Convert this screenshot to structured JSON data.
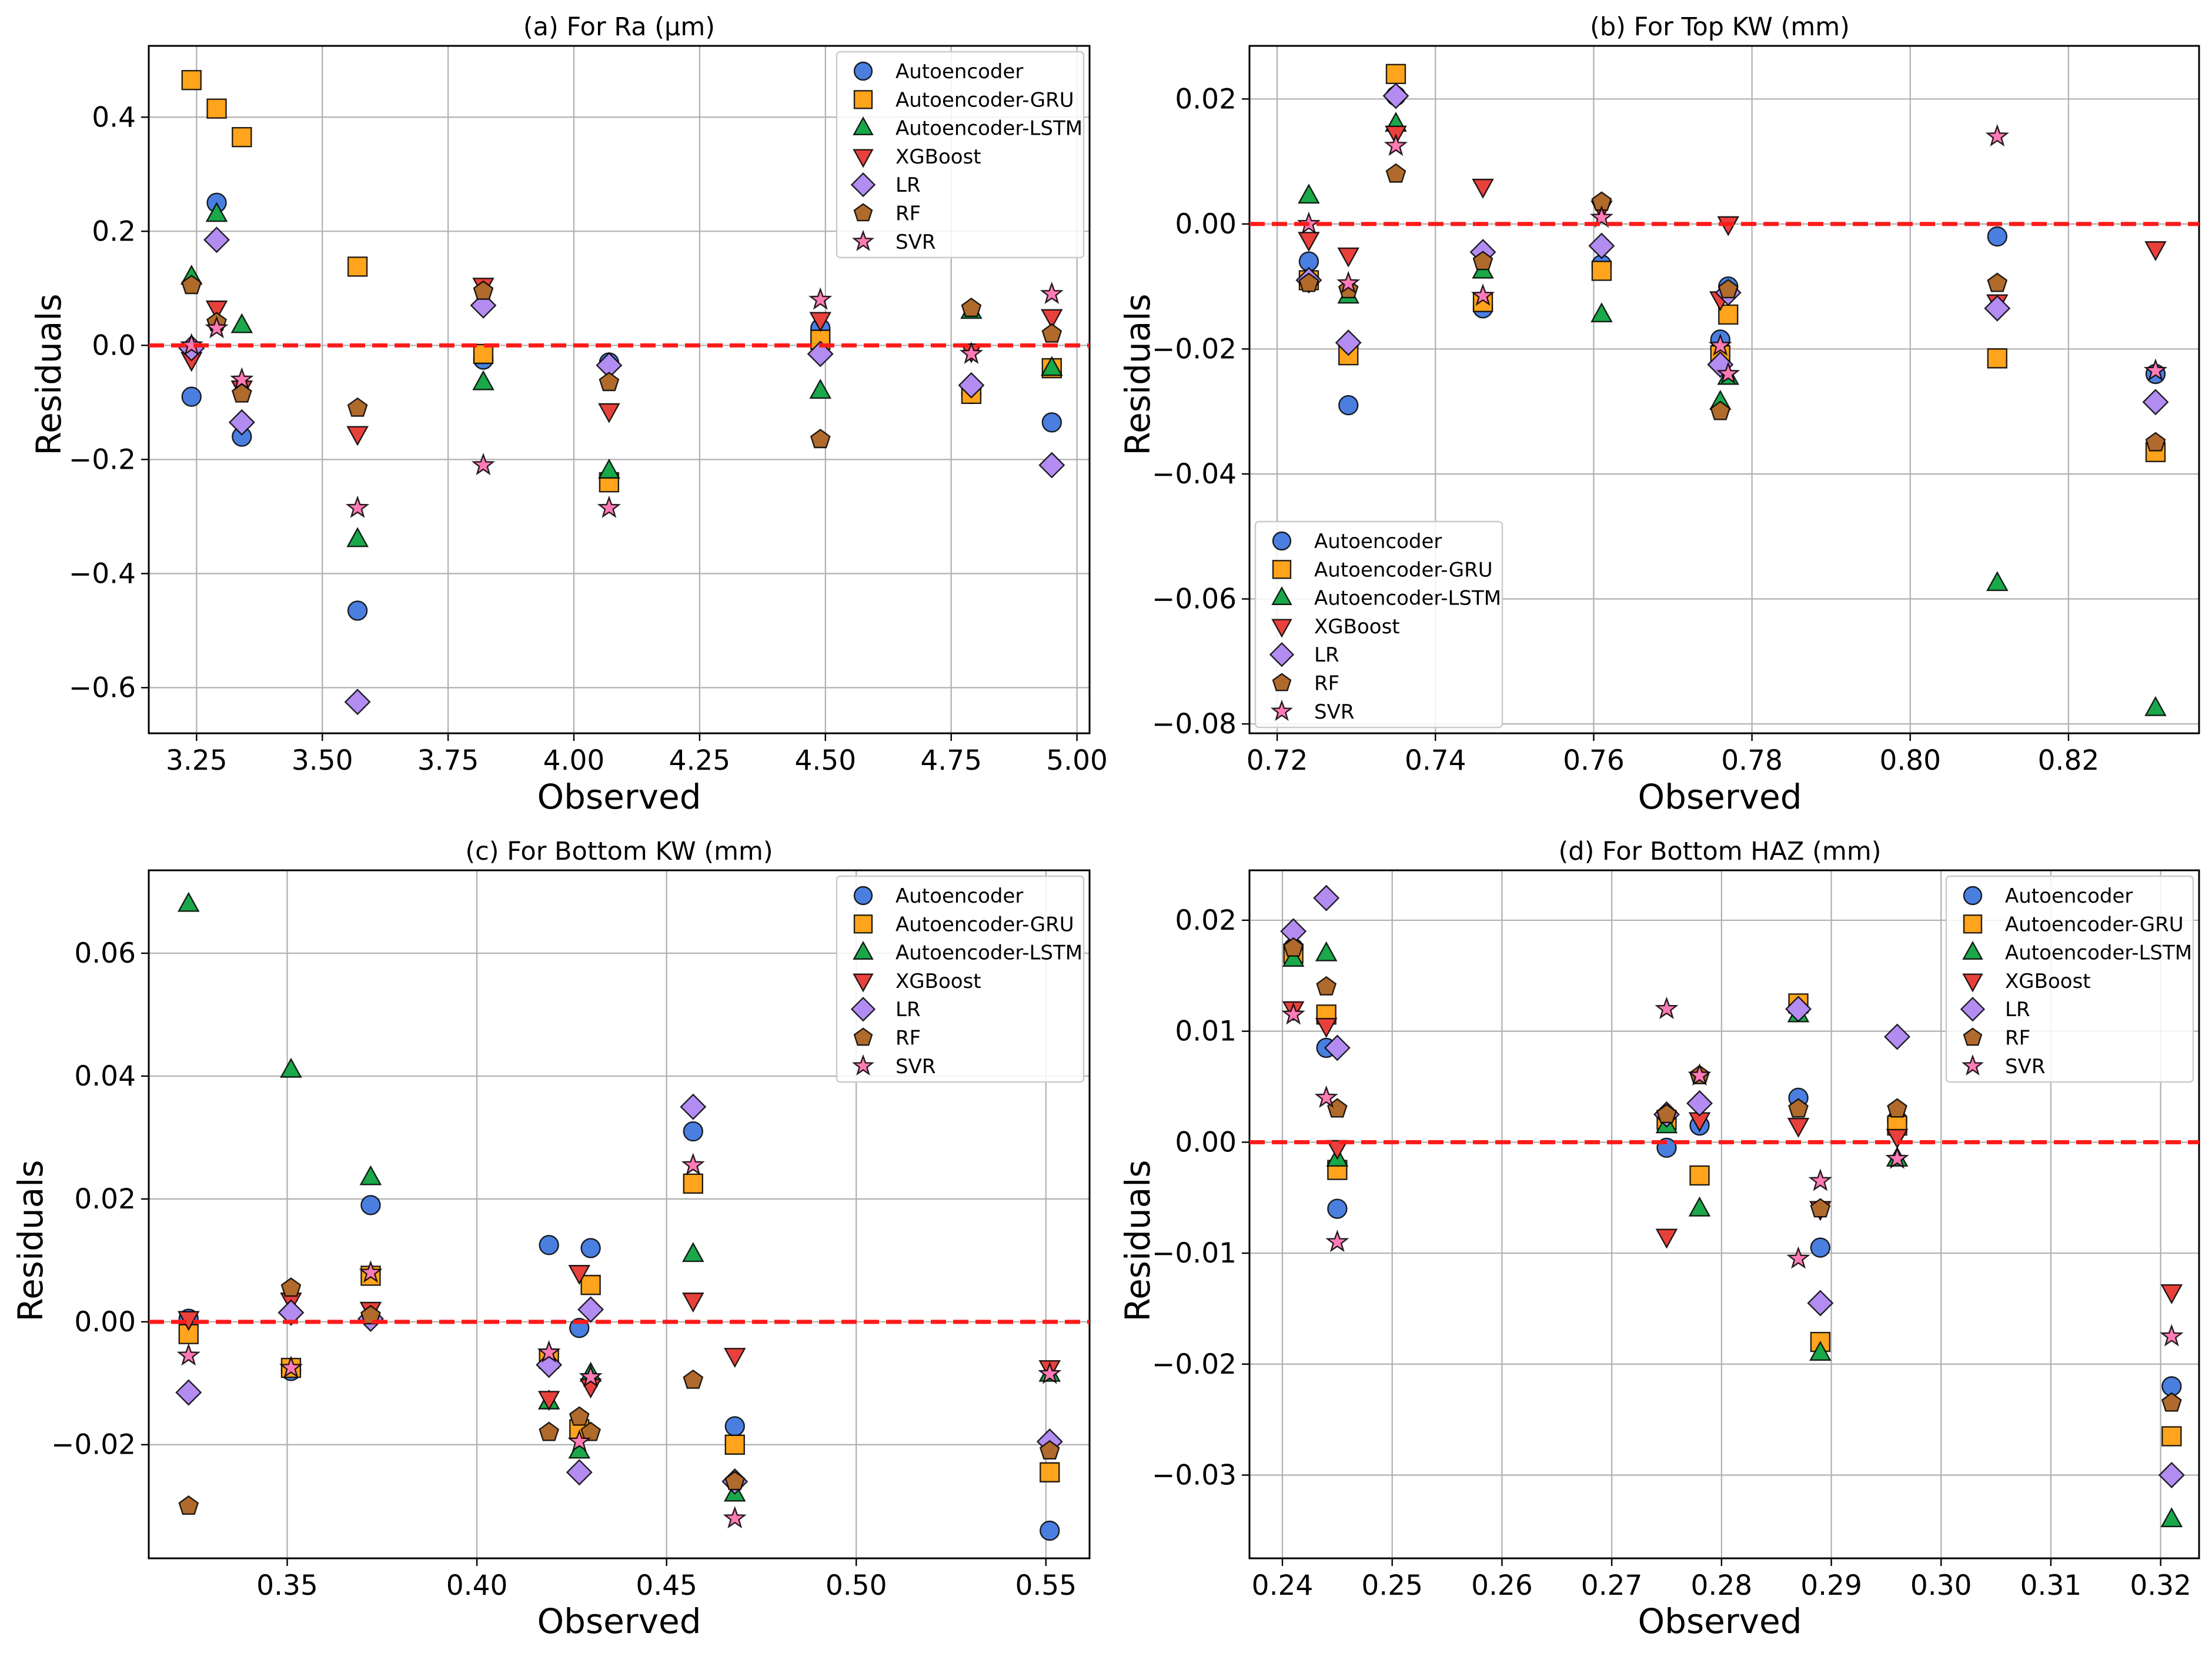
{
  "figure": {
    "series_styles": [
      {
        "name": "Autoencoder",
        "marker": "circle",
        "color": "#4a7fe0"
      },
      {
        "name": "Autoencoder-GRU",
        "marker": "square",
        "color": "#ffa41c"
      },
      {
        "name": "Autoencoder-LSTM",
        "marker": "triangle-up",
        "color": "#1aa84a"
      },
      {
        "name": "XGBoost",
        "marker": "triangle-down",
        "color": "#e8413c"
      },
      {
        "name": "LR",
        "marker": "diamond",
        "color": "#b28cf0"
      },
      {
        "name": "RF",
        "marker": "pentagon",
        "color": "#b06a2c"
      },
      {
        "name": "SVR",
        "marker": "star",
        "color": "#ff7bb6"
      }
    ],
    "reference_line_color": "#ff1a1a"
  },
  "chart_data": [
    {
      "type": "scatter",
      "title": "(a) For Ra (μm)",
      "xlabel": "Observed",
      "ylabel": "Residuals",
      "xlim": [
        3.155,
        5.025
      ],
      "ylim": [
        -0.68,
        0.525
      ],
      "xticks": [
        3.25,
        3.5,
        3.75,
        4.0,
        4.25,
        4.5,
        4.75,
        5.0
      ],
      "xtick_labels": [
        "3.25",
        "3.50",
        "3.75",
        "4.00",
        "4.25",
        "4.50",
        "4.75",
        "5.00"
      ],
      "yticks": [
        -0.6,
        -0.4,
        -0.2,
        0.0,
        0.2,
        0.4
      ],
      "ytick_labels": [
        "−0.6",
        "−0.4",
        "−0.2",
        "0.0",
        "0.2",
        "0.4"
      ],
      "grid": true,
      "legend_position": "top-right",
      "reference_line": 0,
      "x": [
        3.24,
        3.29,
        3.34,
        3.57,
        3.82,
        4.07,
        4.49,
        4.79,
        4.95
      ],
      "series": [
        {
          "name": "Autoencoder",
          "values": [
            -0.09,
            0.25,
            -0.16,
            -0.465,
            -0.025,
            -0.03,
            0.03,
            -0.085,
            -0.135
          ]
        },
        {
          "name": "Autoencoder-GRU",
          "values": [
            0.465,
            0.415,
            0.365,
            0.138,
            -0.015,
            -0.24,
            0.01,
            -0.085,
            -0.04
          ]
        },
        {
          "name": "Autoencoder-LSTM",
          "values": [
            0.12,
            0.23,
            0.035,
            -0.34,
            -0.065,
            -0.22,
            -0.08,
            0.06,
            -0.04
          ]
        },
        {
          "name": "XGBoost",
          "values": [
            -0.025,
            0.065,
            -0.075,
            -0.155,
            0.105,
            -0.115,
            0.045,
            -0.01,
            0.05
          ]
        },
        {
          "name": "LR",
          "values": [
            -0.005,
            0.185,
            -0.135,
            -0.625,
            0.07,
            -0.035,
            -0.015,
            -0.07,
            -0.21
          ]
        },
        {
          "name": "RF",
          "values": [
            0.105,
            0.04,
            -0.085,
            -0.11,
            0.095,
            -0.065,
            -0.165,
            0.065,
            0.02
          ]
        },
        {
          "name": "SVR",
          "values": [
            0.0,
            0.03,
            -0.06,
            -0.285,
            -0.21,
            -0.285,
            0.08,
            -0.015,
            0.09
          ]
        }
      ]
    },
    {
      "type": "scatter",
      "title": "(b) For Top KW (mm)",
      "xlabel": "Observed",
      "ylabel": "Residuals",
      "xlim": [
        0.7165,
        0.8365
      ],
      "ylim": [
        -0.0815,
        0.0285
      ],
      "xticks": [
        0.72,
        0.74,
        0.76,
        0.78,
        0.8,
        0.82
      ],
      "xtick_labels": [
        "0.72",
        "0.74",
        "0.76",
        "0.78",
        "0.80",
        "0.82"
      ],
      "yticks": [
        -0.08,
        -0.06,
        -0.04,
        -0.02,
        0.0,
        0.02
      ],
      "ytick_labels": [
        "−0.08",
        "−0.06",
        "−0.04",
        "−0.02",
        "0.00",
        "0.02"
      ],
      "grid": true,
      "legend_position": "bottom-left",
      "reference_line": 0,
      "x": [
        0.724,
        0.729,
        0.735,
        0.746,
        0.761,
        0.776,
        0.777,
        0.811,
        0.831
      ],
      "series": [
        {
          "name": "Autoencoder",
          "values": [
            -0.006,
            -0.029,
            0.0205,
            -0.0135,
            -0.0065,
            -0.0185,
            -0.01,
            -0.002,
            -0.024
          ]
        },
        {
          "name": "Autoencoder-GRU",
          "values": [
            -0.009,
            -0.021,
            0.024,
            -0.0125,
            -0.0075,
            -0.021,
            -0.0145,
            -0.0215,
            -0.0365
          ]
        },
        {
          "name": "Autoencoder-LSTM",
          "values": [
            0.0045,
            -0.0115,
            0.016,
            -0.0075,
            -0.0145,
            -0.0285,
            -0.0245,
            -0.0575,
            -0.0775
          ]
        },
        {
          "name": "XGBoost",
          "values": [
            -0.0025,
            -0.005,
            0.0145,
            0.006,
            0.0025,
            -0.012,
            0.0,
            -0.0125,
            -0.004
          ]
        },
        {
          "name": "LR",
          "values": [
            -0.009,
            -0.019,
            0.0205,
            -0.0045,
            -0.0035,
            -0.0225,
            -0.011,
            -0.0135,
            -0.0285
          ]
        },
        {
          "name": "RF",
          "values": [
            -0.0095,
            -0.0105,
            0.008,
            -0.006,
            0.0035,
            -0.03,
            -0.0105,
            -0.0095,
            -0.035
          ]
        },
        {
          "name": "SVR",
          "values": [
            0.0,
            -0.0095,
            0.0125,
            -0.0115,
            0.001,
            -0.0195,
            -0.024,
            0.014,
            -0.0235
          ]
        }
      ]
    },
    {
      "type": "scatter",
      "title": "(c) For Bottom KW (mm)",
      "xlabel": "Observed",
      "ylabel": "Residuals",
      "xlim": [
        0.3135,
        0.5615
      ],
      "ylim": [
        -0.0385,
        0.0735
      ],
      "xticks": [
        0.35,
        0.4,
        0.45,
        0.5,
        0.55
      ],
      "xtick_labels": [
        "0.35",
        "0.40",
        "0.45",
        "0.50",
        "0.55"
      ],
      "yticks": [
        -0.02,
        0.0,
        0.02,
        0.04,
        0.06
      ],
      "ytick_labels": [
        "−0.02",
        "0.00",
        "0.02",
        "0.04",
        "0.06"
      ],
      "grid": true,
      "legend_position": "top-right",
      "reference_line": 0,
      "x": [
        0.324,
        0.351,
        0.372,
        0.419,
        0.427,
        0.43,
        0.457,
        0.468,
        0.551
      ],
      "series": [
        {
          "name": "Autoencoder",
          "values": [
            0.0005,
            -0.008,
            0.019,
            0.0125,
            -0.001,
            0.012,
            0.031,
            -0.017,
            -0.034
          ]
        },
        {
          "name": "Autoencoder-GRU",
          "values": [
            -0.002,
            -0.0075,
            0.0075,
            -0.006,
            -0.0175,
            0.006,
            0.0225,
            -0.02,
            -0.0245
          ]
        },
        {
          "name": "Autoencoder-LSTM",
          "values": [
            0.068,
            0.041,
            0.0235,
            -0.013,
            -0.021,
            -0.0085,
            0.011,
            -0.028,
            -0.0085
          ]
        },
        {
          "name": "XGBoost",
          "values": [
            0.0005,
            0.0035,
            0.002,
            -0.0125,
            0.008,
            -0.0105,
            0.0035,
            -0.0055,
            -0.0075
          ]
        },
        {
          "name": "LR",
          "values": [
            -0.0115,
            0.0015,
            0.0005,
            -0.007,
            -0.0245,
            0.002,
            0.035,
            -0.026,
            -0.0195
          ]
        },
        {
          "name": "RF",
          "values": [
            -0.03,
            0.0055,
            0.001,
            -0.018,
            -0.0155,
            -0.018,
            -0.0095,
            -0.026,
            -0.021
          ]
        },
        {
          "name": "SVR",
          "values": [
            -0.0055,
            -0.0075,
            0.008,
            -0.005,
            -0.0195,
            -0.009,
            0.0255,
            -0.032,
            -0.0085
          ]
        }
      ]
    },
    {
      "type": "scatter",
      "title": "(d) For Bottom HAZ (mm)",
      "xlabel": "Observed",
      "ylabel": "Residuals",
      "xlim": [
        0.237,
        0.3235
      ],
      "ylim": [
        -0.0375,
        0.0245
      ],
      "xticks": [
        0.24,
        0.25,
        0.26,
        0.27,
        0.28,
        0.29,
        0.3,
        0.31,
        0.32
      ],
      "xtick_labels": [
        "0.24",
        "0.25",
        "0.26",
        "0.27",
        "0.28",
        "0.29",
        "0.30",
        "0.31",
        "0.32"
      ],
      "yticks": [
        -0.03,
        -0.02,
        -0.01,
        0.0,
        0.01,
        0.02
      ],
      "ytick_labels": [
        "−0.03",
        "−0.02",
        "−0.01",
        "0.00",
        "0.01",
        "0.02"
      ],
      "grid": true,
      "legend_position": "top-right",
      "reference_line": 0,
      "x": [
        0.241,
        0.244,
        0.245,
        0.275,
        0.278,
        0.287,
        0.289,
        0.296,
        0.321
      ],
      "series": [
        {
          "name": "Autoencoder",
          "values": [
            0.0175,
            0.0085,
            -0.006,
            -0.0005,
            0.0015,
            0.004,
            -0.0095,
            0.002,
            -0.022
          ]
        },
        {
          "name": "Autoencoder-GRU",
          "values": [
            0.017,
            0.0115,
            -0.0025,
            0.002,
            -0.003,
            0.0125,
            -0.018,
            0.0015,
            -0.0265
          ]
        },
        {
          "name": "Autoencoder-LSTM",
          "values": [
            0.0165,
            0.017,
            -0.0015,
            0.0015,
            -0.006,
            0.0115,
            -0.019,
            -0.0015,
            -0.034
          ]
        },
        {
          "name": "XGBoost",
          "values": [
            0.012,
            0.0105,
            -0.0005,
            -0.0085,
            0.002,
            0.0015,
            -0.006,
            0.0005,
            -0.0135
          ]
        },
        {
          "name": "LR",
          "values": [
            0.019,
            0.022,
            0.0085,
            0.0025,
            0.0035,
            0.012,
            -0.0145,
            0.0095,
            -0.03
          ]
        },
        {
          "name": "RF",
          "values": [
            0.0175,
            0.014,
            0.003,
            0.0025,
            0.006,
            0.003,
            -0.006,
            0.003,
            -0.0235
          ]
        },
        {
          "name": "SVR",
          "values": [
            0.0115,
            0.004,
            -0.009,
            0.012,
            0.006,
            -0.0105,
            -0.0035,
            -0.0015,
            -0.0175
          ]
        }
      ]
    }
  ]
}
